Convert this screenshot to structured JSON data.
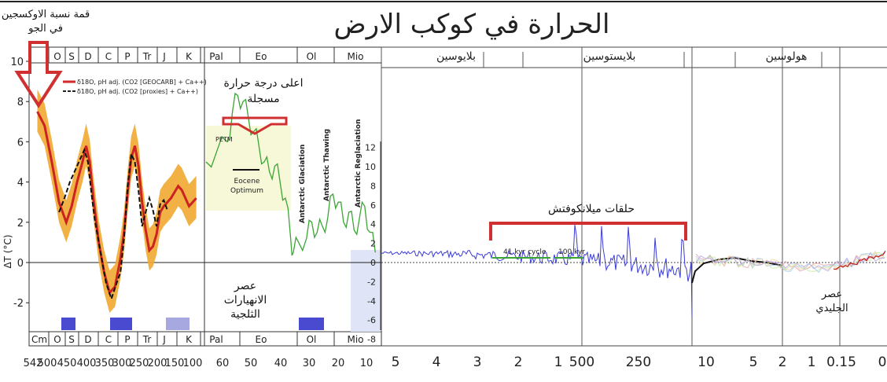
{
  "title": "الحرارة في كوكب الارض",
  "ylabel": "ΔT (°C)",
  "left_yticks": [
    "10",
    "8",
    "6",
    "4",
    "2",
    "0",
    "-2"
  ],
  "mid_yticks": [
    "12",
    "10",
    "8",
    "6",
    "4",
    "2",
    "0",
    "-2",
    "-4",
    "-6",
    "-8"
  ],
  "periods_top": [
    "O",
    "S",
    "D",
    "C",
    "P",
    "Tr",
    "J",
    "K",
    "Pal",
    "Eo",
    "Ol",
    "Mio"
  ],
  "periods_bottom": [
    "Cm",
    "O",
    "S",
    "D",
    "C",
    "P",
    "Tr",
    "J",
    "K",
    "Pal",
    "Eo",
    "Ol",
    "Mio"
  ],
  "epochs": [
    "بلايوسين",
    "بلايستوسين",
    "هولوسين"
  ],
  "xticks_panel1": [
    "542",
    "500",
    "450",
    "400",
    "350",
    "300",
    "250",
    "200",
    "150",
    "100"
  ],
  "xticks_panel2": [
    "60",
    "50",
    "40",
    "30",
    "20",
    "10"
  ],
  "xticks_panel3": [
    "5",
    "4",
    "3",
    "2",
    "1"
  ],
  "xticks_panel4": [
    "500",
    "250"
  ],
  "xticks_panel5": [
    "10",
    "5",
    "2",
    "1",
    "0.15",
    "0"
  ],
  "legend": [
    {
      "label": "δ18O, pH adj. (CO2 [GEOCARB] + Ca++)",
      "color": "#d62728"
    },
    {
      "label": "δ18O, pH adj. (CO2 [proxies] + Ca++)",
      "color": "#222222"
    }
  ],
  "annotations": {
    "oxygen_peak": [
      "قمة نسبة الاوكسجين",
      "في الجو"
    ],
    "max_temp": [
      "اعلى درجة حرارة",
      "مسجلة"
    ],
    "glaciation": [
      "عصر",
      "الانهيارات",
      "الثلجية"
    ],
    "milankovitch": "حلقات ميلانكوفتش",
    "ice_age": [
      "عصر",
      "الجليدي"
    ],
    "petm": "PETM",
    "eocene_optimum": [
      "Eocene",
      "Optimum"
    ],
    "antarctic": [
      "Antarctic Glaciation",
      "Antarctic Thawing",
      "Antarctic Reglaciation"
    ],
    "cycles": [
      "41 kyr cycle",
      "100 kyr"
    ]
  },
  "colors": {
    "red": "#cc2222",
    "orange": "#f0a830",
    "green": "#3aa535",
    "blue": "#3b3bd6",
    "black": "#111111",
    "arrow": "#d03030"
  },
  "chart_data": {
    "type": "line",
    "title": "الحرارة في كوكب الارض",
    "ylabel": "ΔT (°C)",
    "ylim": [
      -3.5,
      10
    ],
    "series": [
      {
        "name": "δ18O, pH adj. (CO2 [GEOCARB] + Ca++)",
        "x_ma": [
          530,
          510,
          490,
          470,
          450,
          435,
          420,
          405,
          395,
          385,
          375,
          360,
          345,
          330,
          315,
          300,
          290,
          280,
          270,
          260,
          250,
          240,
          230,
          220,
          210,
          200,
          190,
          180,
          170,
          160,
          150,
          140,
          130,
          120,
          110,
          100,
          90
        ],
        "values": [
          7.5,
          6.8,
          5.0,
          3.0,
          2.0,
          2.8,
          4.0,
          5.0,
          5.8,
          5.0,
          3.2,
          1.0,
          -0.5,
          -1.5,
          -1.2,
          0.2,
          1.5,
          3.5,
          5.2,
          5.8,
          4.8,
          3.0,
          1.6,
          0.6,
          0.8,
          1.4,
          2.5,
          2.8,
          3.0,
          3.2,
          3.5,
          3.8,
          3.6,
          3.2,
          2.8,
          3.0,
          3.2
        ]
      },
      {
        "name": "δ18O, pH adj. (CO2 [proxies] + Ca++)",
        "x_ma": [
          470,
          455,
          440,
          425,
          410,
          400,
          390,
          380,
          370,
          355,
          340,
          325,
          310,
          300,
          290,
          280,
          270,
          260,
          250,
          240,
          230,
          220,
          210,
          200,
          190,
          180,
          170
        ],
        "values": [
          2.5,
          3.2,
          4.0,
          4.6,
          5.2,
          5.6,
          5.0,
          3.4,
          2.0,
          0.5,
          -1.0,
          -1.8,
          -1.0,
          -0.5,
          1.2,
          3.8,
          5.4,
          5.0,
          3.6,
          1.8,
          2.5,
          3.2,
          2.6,
          1.8,
          2.9,
          3.1,
          2.6
        ]
      },
      {
        "name": "",
        "x_ma": [
          66,
          62,
          58,
          56,
          54,
          52,
          50,
          48,
          46,
          44,
          42,
          40,
          38,
          36,
          34,
          33,
          31,
          28,
          26,
          24,
          22,
          20,
          18,
          16,
          14,
          12,
          10,
          8,
          6,
          4,
          2
        ],
        "values": [
          5.0,
          5.5,
          6.0,
          7.5,
          8.3,
          8.0,
          7.2,
          6.5,
          5.8,
          5.0,
          4.5,
          4.8,
          4.0,
          3.2,
          1.2,
          0.5,
          1.0,
          1.2,
          2.0,
          1.5,
          1.8,
          2.2,
          3.4,
          3.0,
          2.0,
          2.5,
          1.6,
          2.2,
          2.8,
          1.5,
          0.5
        ]
      }
    ],
    "annotations": [
      "PETM",
      "Eocene Optimum",
      "Antarctic Glaciation",
      "Antarctic Thawing",
      "Antarctic Reglaciation",
      "41 kyr cycle",
      "100 kyr"
    ]
  }
}
